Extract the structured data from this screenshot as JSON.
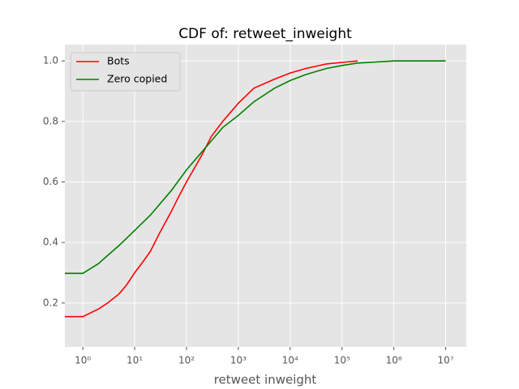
{
  "chart_data": {
    "type": "line",
    "title": "CDF of: retweet_inweight",
    "x_label": "retweet inweight",
    "x_scale": "log",
    "grid": true,
    "legend": "upper left",
    "xlim": [
      0.45,
      25000000
    ],
    "ylim": [
      0.055,
      1.054
    ],
    "xticks": [
      {
        "value": 1,
        "label": "10⁰"
      },
      {
        "value": 10,
        "label": "10¹"
      },
      {
        "value": 100,
        "label": "10²"
      },
      {
        "value": 1000,
        "label": "10³"
      },
      {
        "value": 10000,
        "label": "10⁴"
      },
      {
        "value": 100000,
        "label": "10⁵"
      },
      {
        "value": 1000000,
        "label": "10⁶"
      },
      {
        "value": 10000000,
        "label": "10⁷"
      }
    ],
    "yticks": [
      0.2,
      0.4,
      0.6,
      0.8,
      {
        "value": 1,
        "label": "1.0"
      }
    ],
    "series": [
      {
        "name": "Bots",
        "color": "#ff0000",
        "x": [
          0.45,
          1,
          2,
          3,
          5,
          7,
          10,
          15,
          20,
          30,
          50,
          70,
          100,
          200,
          300,
          500,
          1000,
          2000,
          5000,
          10000,
          20000,
          50000,
          100000,
          200000
        ],
        "values": [
          0.155,
          0.155,
          0.18,
          0.2,
          0.23,
          0.26,
          0.3,
          0.34,
          0.37,
          0.43,
          0.5,
          0.55,
          0.6,
          0.69,
          0.75,
          0.8,
          0.86,
          0.91,
          0.94,
          0.96,
          0.975,
          0.99,
          0.995,
          1
        ]
      },
      {
        "name": "Zero copied",
        "color": "#008000",
        "x": [
          0.45,
          1,
          2,
          5,
          10,
          20,
          50,
          100,
          200,
          500,
          1000,
          2000,
          5000,
          10000,
          20000,
          50000,
          100000,
          200000,
          1000000,
          10000000
        ],
        "values": [
          0.298,
          0.298,
          0.33,
          0.39,
          0.44,
          0.49,
          0.57,
          0.64,
          0.7,
          0.78,
          0.82,
          0.865,
          0.91,
          0.935,
          0.955,
          0.975,
          0.985,
          0.993,
          1,
          1
        ]
      }
    ]
  }
}
